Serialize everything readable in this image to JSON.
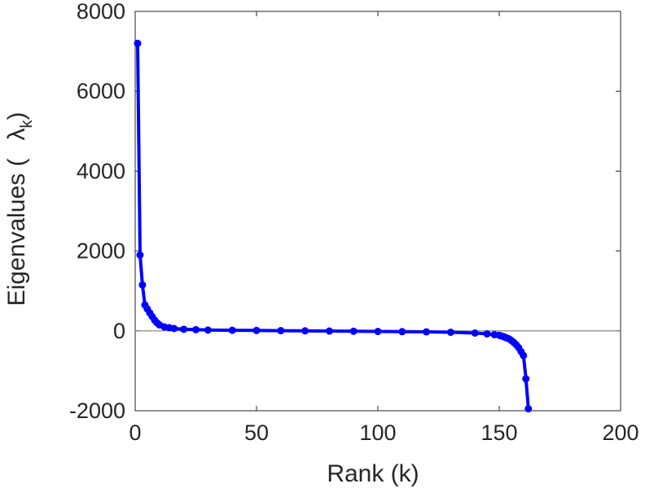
{
  "chart_data": {
    "type": "line",
    "title": "",
    "xlabel": "Rank (k)",
    "ylabel_text": "Eigenvalues (",
    "ylabel_symbol": "λ",
    "ylabel_subscript": "k",
    "ylabel_close": ")",
    "xlim": [
      0,
      200
    ],
    "ylim": [
      -2000,
      8000
    ],
    "xticks": [
      0,
      50,
      100,
      150,
      200
    ],
    "yticks": [
      -2000,
      0,
      2000,
      4000,
      6000,
      8000
    ],
    "xtick_labels": [
      "0",
      "50",
      "100",
      "150",
      "200"
    ],
    "ytick_labels": [
      "-2000",
      "0",
      "2000",
      "4000",
      "6000",
      "8000"
    ],
    "zero_line": true,
    "grid": false,
    "legend": "none",
    "colors": {
      "series": "#0000ff",
      "axes": "#262626",
      "zero_line": "#7f7f7f"
    },
    "series": [
      {
        "x": [
          1,
          2,
          3,
          4,
          5,
          6,
          7,
          8,
          9,
          10,
          12,
          14,
          16,
          20,
          25,
          30,
          40,
          50,
          60,
          70,
          80,
          90,
          100,
          110,
          120,
          130,
          140,
          145,
          148,
          150,
          151,
          152,
          153,
          154,
          155,
          156,
          157,
          158,
          159,
          160,
          161,
          162
        ],
        "y": [
          7200,
          1900,
          1150,
          650,
          550,
          450,
          360,
          270,
          200,
          150,
          100,
          80,
          60,
          40,
          30,
          20,
          15,
          10,
          5,
          0,
          -5,
          -10,
          -15,
          -20,
          -25,
          -35,
          -55,
          -75,
          -95,
          -110,
          -130,
          -150,
          -175,
          -200,
          -240,
          -290,
          -350,
          -420,
          -520,
          -620,
          -1200,
          -1950
        ]
      }
    ]
  }
}
